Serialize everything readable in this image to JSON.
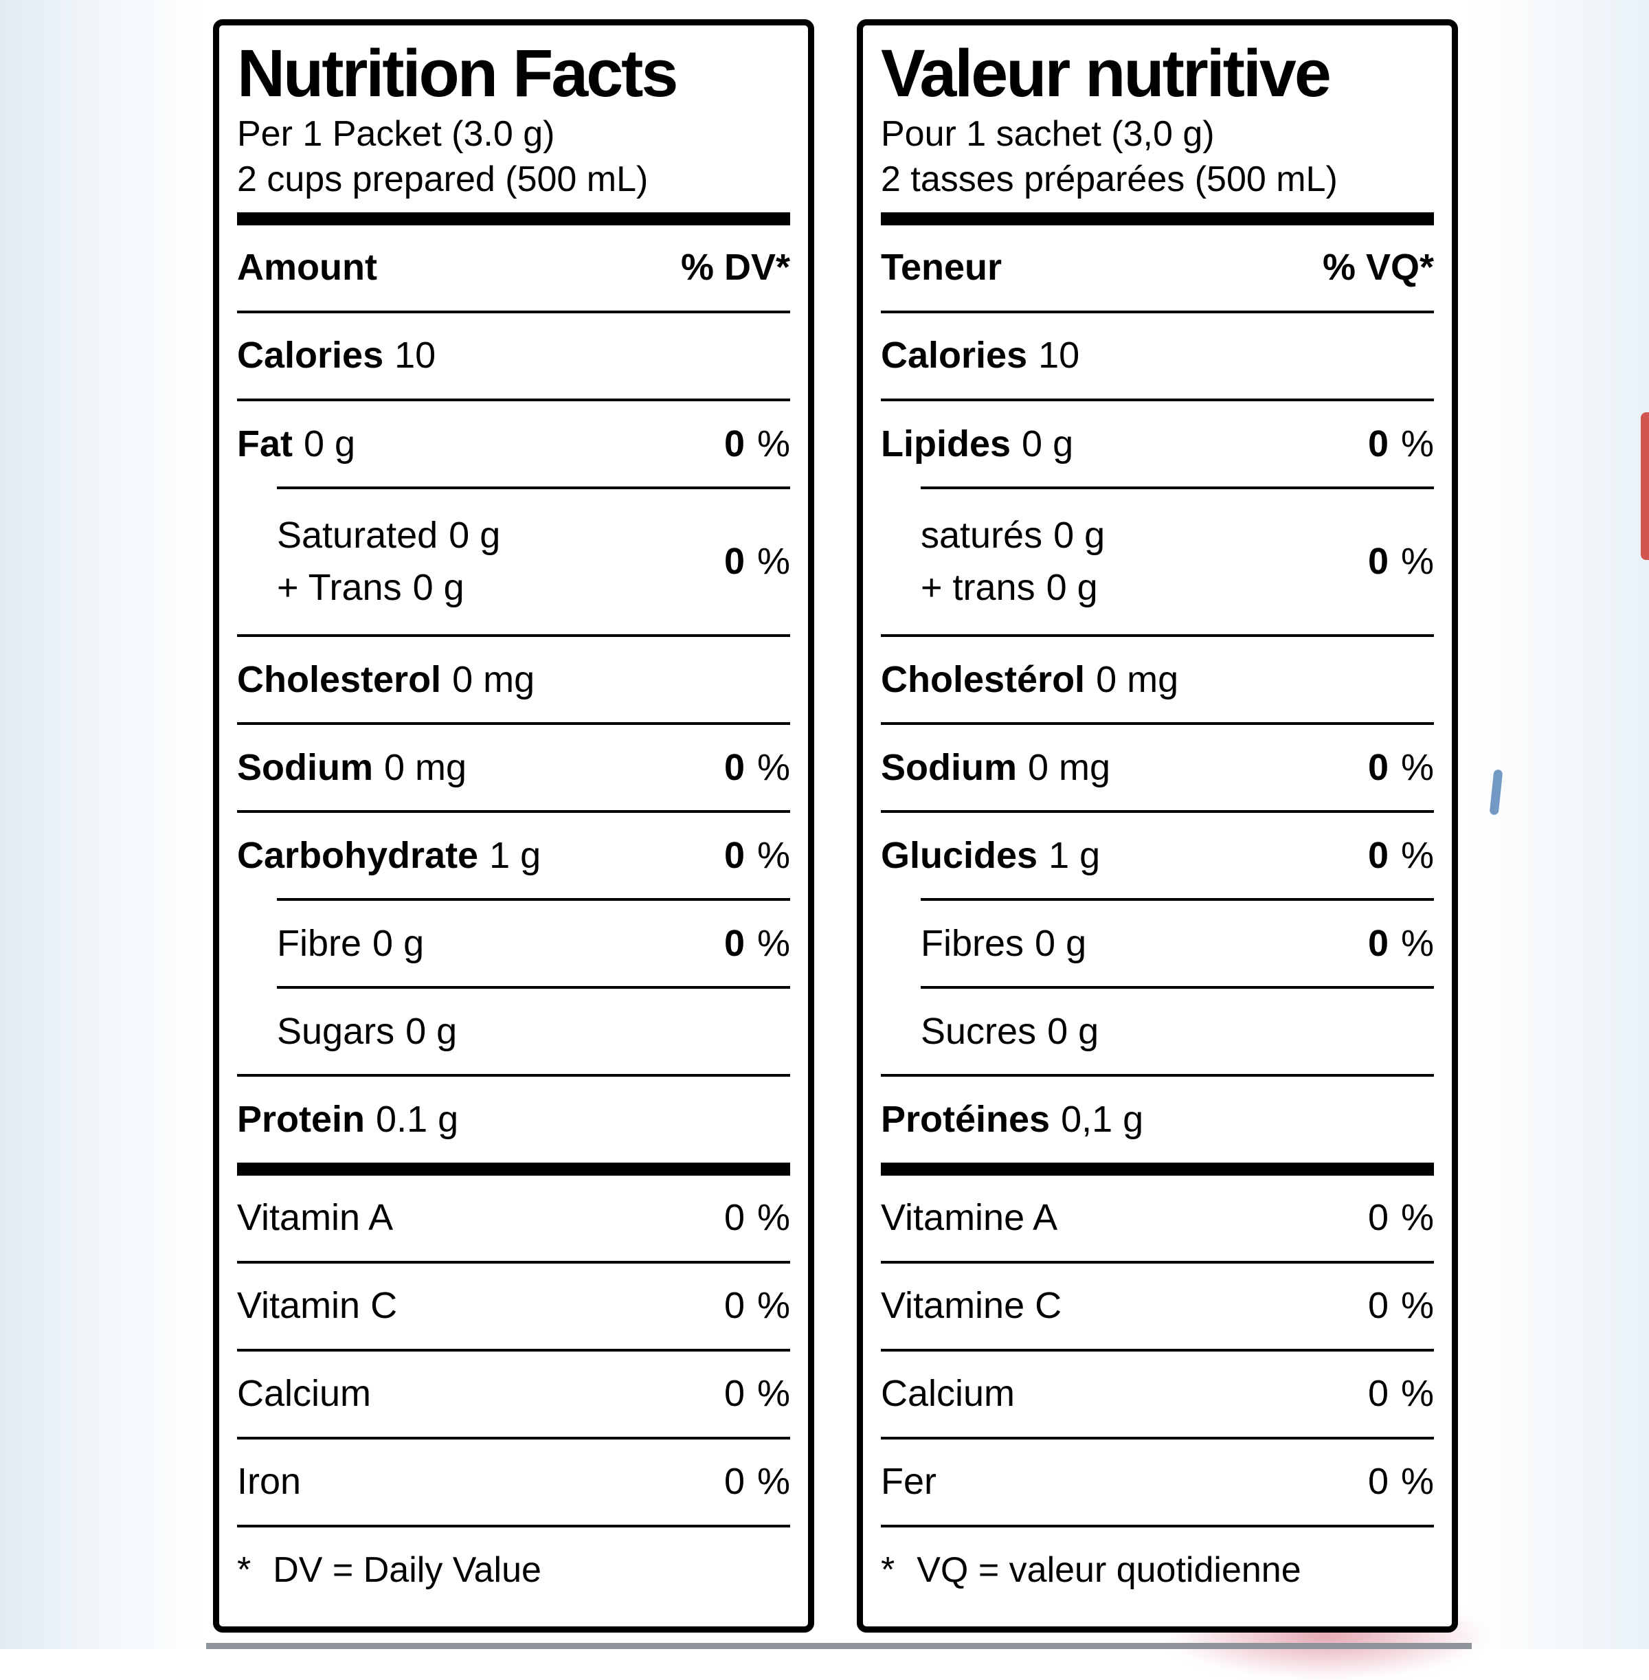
{
  "colors": {
    "ink": "#000000",
    "paper": "#ffffff"
  },
  "panels": [
    {
      "lang": "en",
      "title": "Nutrition Facts",
      "serving_line1": "Per 1 Packet (3.0 g)",
      "serving_line2": "2 cups prepared (500 mL)",
      "header_amount": "Amount",
      "header_dv": "% DV*",
      "percent": "%",
      "calories": {
        "name": "Calories",
        "amount": "10"
      },
      "fat": {
        "name": "Fat",
        "amount": "0 g",
        "dv": "0"
      },
      "saturated": {
        "name": "Saturated",
        "amount": "0 g",
        "name2": "+ Trans",
        "amount2": "0 g",
        "dv": "0"
      },
      "cholesterol": {
        "name": "Cholesterol",
        "amount": "0 mg"
      },
      "sodium": {
        "name": "Sodium",
        "amount": "0 mg",
        "dv": "0"
      },
      "carbohydrate": {
        "name": "Carbohydrate",
        "amount": "1 g",
        "dv": "0"
      },
      "fibre": {
        "name": "Fibre",
        "amount": "0 g",
        "dv": "0"
      },
      "sugars": {
        "name": "Sugars",
        "amount": "0 g"
      },
      "protein": {
        "name": "Protein",
        "amount": "0.1 g"
      },
      "micros": [
        {
          "name": "Vitamin A",
          "dv": "0"
        },
        {
          "name": "Vitamin C",
          "dv": "0"
        },
        {
          "name": "Calcium",
          "dv": "0"
        },
        {
          "name": "Iron",
          "dv": "0"
        }
      ],
      "footnote_star": "*",
      "footnote_text": "DV = Daily Value"
    },
    {
      "lang": "fr",
      "title": "Valeur nutritive",
      "serving_line1": "Pour 1 sachet (3,0 g)",
      "serving_line2": "2 tasses préparées (500 mL)",
      "header_amount": "Teneur",
      "header_dv": "% VQ*",
      "percent": "%",
      "calories": {
        "name": "Calories",
        "amount": "10"
      },
      "fat": {
        "name": "Lipides",
        "amount": "0 g",
        "dv": "0"
      },
      "saturated": {
        "name": "saturés",
        "amount": "0 g",
        "name2": "+ trans",
        "amount2": "0 g",
        "dv": "0"
      },
      "cholesterol": {
        "name": "Cholestérol",
        "amount": "0 mg"
      },
      "sodium": {
        "name": "Sodium",
        "amount": "0 mg",
        "dv": "0"
      },
      "carbohydrate": {
        "name": "Glucides",
        "amount": "1 g",
        "dv": "0"
      },
      "fibre": {
        "name": "Fibres",
        "amount": "0 g",
        "dv": "0"
      },
      "sugars": {
        "name": "Sucres",
        "amount": "0 g"
      },
      "protein": {
        "name": "Protéines",
        "amount": "0,1 g"
      },
      "micros": [
        {
          "name": "Vitamine A",
          "dv": "0"
        },
        {
          "name": "Vitamine C",
          "dv": "0"
        },
        {
          "name": "Calcium",
          "dv": "0"
        },
        {
          "name": "Fer",
          "dv": "0"
        }
      ],
      "footnote_star": "*",
      "footnote_text": "VQ = valeur quotidienne"
    }
  ]
}
